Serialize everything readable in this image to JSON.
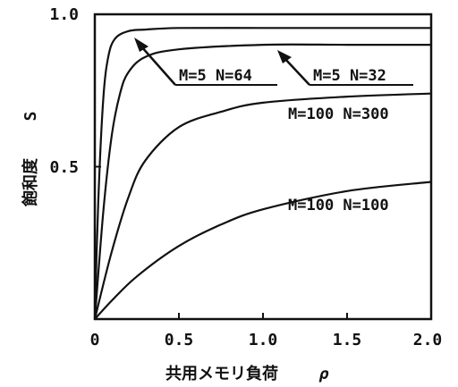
{
  "chart_data": {
    "type": "line",
    "title": "",
    "xlabel": "共用メモリ負荷",
    "xlabel_symbol": "ρ",
    "ylabel": "飽和度",
    "ylabel_symbol": "S",
    "xlim": [
      0,
      2.0
    ],
    "ylim": [
      0,
      1.0
    ],
    "x_ticks": [
      "0",
      "0.5",
      "1.0",
      "1.5",
      "2.0"
    ],
    "y_ticks": [
      "0.5",
      "1.0"
    ],
    "grid": false,
    "series": [
      {
        "name": "M=5 N=64",
        "x": [
          0,
          0.02,
          0.05,
          0.08,
          0.12,
          0.2,
          0.3,
          0.5,
          1.0,
          1.5,
          2.0
        ],
        "values": [
          0,
          0.38,
          0.72,
          0.86,
          0.92,
          0.945,
          0.95,
          0.955,
          0.955,
          0.955,
          0.955
        ]
      },
      {
        "name": "M=5 N=32",
        "x": [
          0,
          0.05,
          0.1,
          0.15,
          0.2,
          0.3,
          0.5,
          1.0,
          1.5,
          2.0
        ],
        "values": [
          0,
          0.35,
          0.6,
          0.74,
          0.81,
          0.86,
          0.885,
          0.9,
          0.9,
          0.9
        ]
      },
      {
        "name": "M=100 N=300",
        "x": [
          0,
          0.1,
          0.2,
          0.3,
          0.5,
          0.75,
          1.0,
          1.5,
          2.0
        ],
        "values": [
          0,
          0.22,
          0.4,
          0.52,
          0.63,
          0.68,
          0.71,
          0.73,
          0.74
        ]
      },
      {
        "name": "M=100 N=100",
        "x": [
          0,
          0.1,
          0.25,
          0.5,
          0.75,
          1.0,
          1.5,
          2.0
        ],
        "values": [
          0,
          0.06,
          0.14,
          0.24,
          0.31,
          0.36,
          0.42,
          0.45
        ]
      }
    ],
    "annotations": [
      {
        "text": "M=5 N=64",
        "points_to": "M=5 N=64"
      },
      {
        "text": "M=5 N=32",
        "points_to": "M=5 N=32"
      },
      {
        "text": "M=100 N=300",
        "points_to": "M=100 N=300"
      },
      {
        "text": "M=100 N=100",
        "points_to": "M=100 N=100"
      }
    ]
  }
}
